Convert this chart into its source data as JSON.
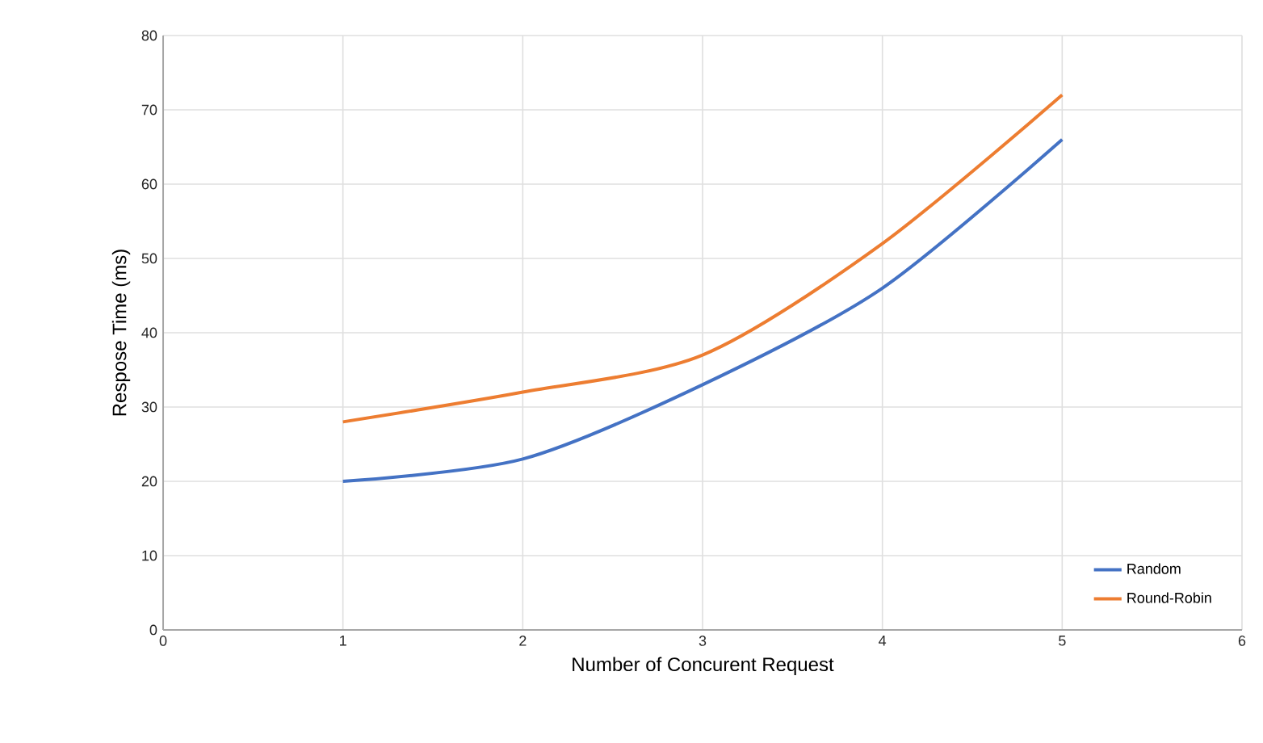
{
  "chart_data": {
    "type": "line",
    "xlabel": "Number of Concurent Request",
    "ylabel": "Respose Time (ms)",
    "x": [
      1,
      2,
      3,
      4,
      5
    ],
    "series": [
      {
        "name": "Random",
        "color": "#4472c4",
        "values": [
          20,
          23,
          33,
          46,
          66
        ]
      },
      {
        "name": "Round-Robin",
        "color": "#ed7d31",
        "values": [
          28,
          32,
          37,
          52,
          72
        ]
      }
    ],
    "xlim": [
      0,
      6
    ],
    "xticks": [
      0,
      1,
      2,
      3,
      4,
      5,
      6
    ],
    "ylim": [
      0,
      80
    ],
    "yticks": [
      0,
      10,
      20,
      30,
      40,
      50,
      60,
      70,
      80
    ],
    "grid": true,
    "legend": "bottom right",
    "marker": "none",
    "line_style": "solid"
  }
}
